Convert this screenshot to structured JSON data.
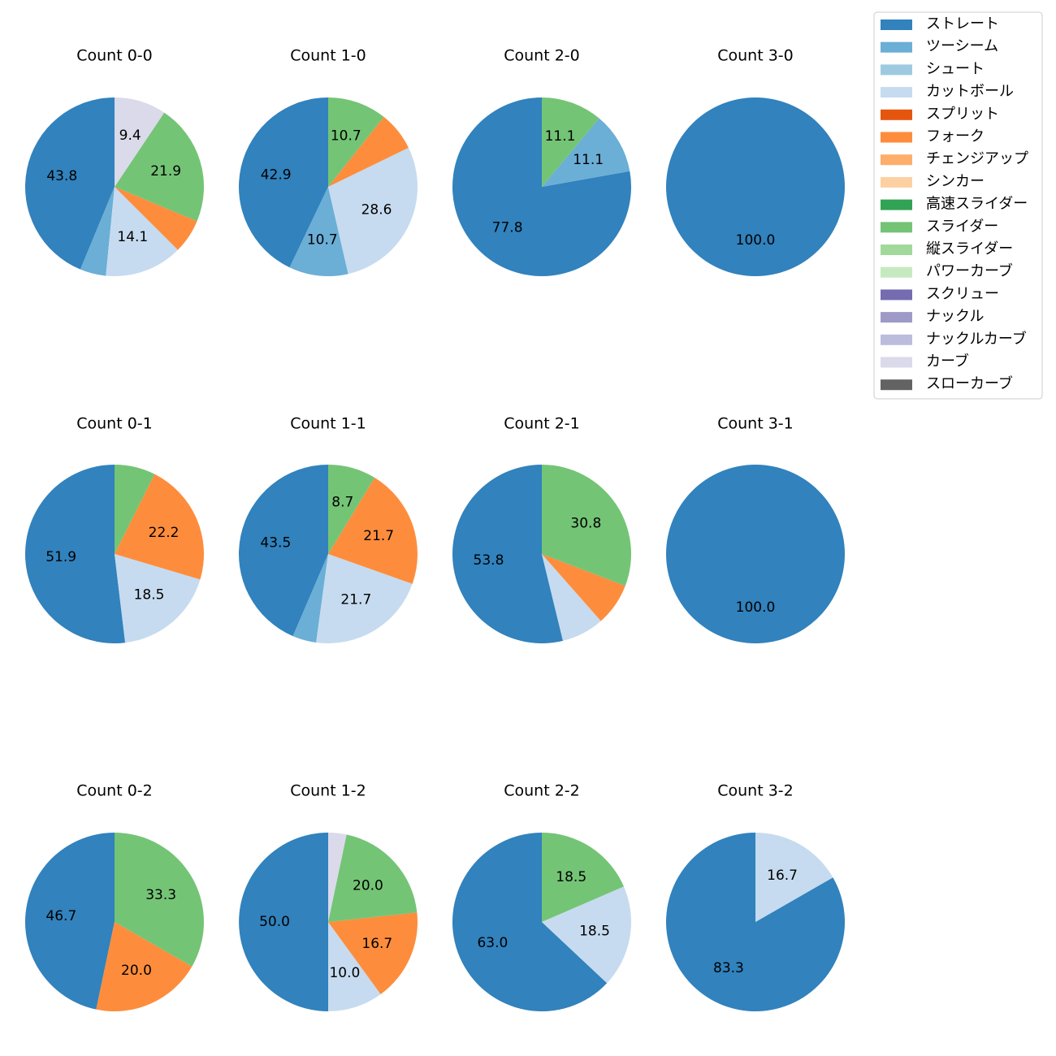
{
  "legend": {
    "entries": [
      {
        "name": "ストレート",
        "color": "#3182bd"
      },
      {
        "name": "ツーシーム",
        "color": "#6baed6"
      },
      {
        "name": "シュート",
        "color": "#9ecae1"
      },
      {
        "name": "カットボール",
        "color": "#c6dbef"
      },
      {
        "name": "スプリット",
        "color": "#e6550d"
      },
      {
        "name": "フォーク",
        "color": "#fd8d3c"
      },
      {
        "name": "チェンジアップ",
        "color": "#fdae6b"
      },
      {
        "name": "シンカー",
        "color": "#fdd0a2"
      },
      {
        "name": "高速スライダー",
        "color": "#31a354"
      },
      {
        "name": "スライダー",
        "color": "#74c476"
      },
      {
        "name": "縦スライダー",
        "color": "#a1d99b"
      },
      {
        "name": "パワーカーブ",
        "color": "#c7e9c0"
      },
      {
        "name": "スクリュー",
        "color": "#756bb1"
      },
      {
        "name": "ナックル",
        "color": "#9e9ac8"
      },
      {
        "name": "ナックルカーブ",
        "color": "#bcbddc"
      },
      {
        "name": "カーブ",
        "color": "#dadaeb"
      },
      {
        "name": "スローカーブ",
        "color": "#636363"
      }
    ]
  },
  "chart_data": [
    {
      "type": "pie",
      "title": "Count 0-0",
      "slices": [
        {
          "name": "ストレート",
          "value": 43.8,
          "label": "43.8"
        },
        {
          "name": "ツーシーム",
          "value": 4.7,
          "label": ""
        },
        {
          "name": "カットボール",
          "value": 14.1,
          "label": "14.1"
        },
        {
          "name": "フォーク",
          "value": 6.2,
          "label": ""
        },
        {
          "name": "スライダー",
          "value": 21.9,
          "label": "21.9"
        },
        {
          "name": "カーブ",
          "value": 9.4,
          "label": "9.4"
        }
      ]
    },
    {
      "type": "pie",
      "title": "Count 1-0",
      "slices": [
        {
          "name": "ストレート",
          "value": 42.9,
          "label": "42.9"
        },
        {
          "name": "ツーシーム",
          "value": 10.7,
          "label": "10.7"
        },
        {
          "name": "カットボール",
          "value": 28.6,
          "label": "28.6"
        },
        {
          "name": "フォーク",
          "value": 7.1,
          "label": ""
        },
        {
          "name": "スライダー",
          "value": 10.7,
          "label": "10.7"
        }
      ]
    },
    {
      "type": "pie",
      "title": "Count 2-0",
      "slices": [
        {
          "name": "ストレート",
          "value": 77.8,
          "label": "77.8"
        },
        {
          "name": "ツーシーム",
          "value": 11.1,
          "label": "11.1"
        },
        {
          "name": "スライダー",
          "value": 11.1,
          "label": "11.1"
        }
      ]
    },
    {
      "type": "pie",
      "title": "Count 3-0",
      "slices": [
        {
          "name": "ストレート",
          "value": 100.0,
          "label": "100.0"
        }
      ]
    },
    {
      "type": "pie",
      "title": "Count 0-1",
      "slices": [
        {
          "name": "ストレート",
          "value": 51.9,
          "label": "51.9"
        },
        {
          "name": "カットボール",
          "value": 18.5,
          "label": "18.5"
        },
        {
          "name": "フォーク",
          "value": 22.2,
          "label": "22.2"
        },
        {
          "name": "スライダー",
          "value": 7.4,
          "label": ""
        }
      ]
    },
    {
      "type": "pie",
      "title": "Count 1-1",
      "slices": [
        {
          "name": "ストレート",
          "value": 43.5,
          "label": "43.5"
        },
        {
          "name": "ツーシーム",
          "value": 4.3,
          "label": ""
        },
        {
          "name": "カットボール",
          "value": 21.7,
          "label": "21.7"
        },
        {
          "name": "フォーク",
          "value": 21.7,
          "label": "21.7"
        },
        {
          "name": "スライダー",
          "value": 8.7,
          "label": "8.7"
        }
      ]
    },
    {
      "type": "pie",
      "title": "Count 2-1",
      "slices": [
        {
          "name": "ストレート",
          "value": 53.8,
          "label": "53.8"
        },
        {
          "name": "カットボール",
          "value": 7.7,
          "label": ""
        },
        {
          "name": "フォーク",
          "value": 7.7,
          "label": ""
        },
        {
          "name": "スライダー",
          "value": 30.8,
          "label": "30.8"
        }
      ]
    },
    {
      "type": "pie",
      "title": "Count 3-1",
      "slices": [
        {
          "name": "ストレート",
          "value": 100.0,
          "label": "100.0"
        }
      ]
    },
    {
      "type": "pie",
      "title": "Count 0-2",
      "slices": [
        {
          "name": "ストレート",
          "value": 46.7,
          "label": "46.7"
        },
        {
          "name": "フォーク",
          "value": 20.0,
          "label": "20.0"
        },
        {
          "name": "スライダー",
          "value": 33.3,
          "label": "33.3"
        }
      ]
    },
    {
      "type": "pie",
      "title": "Count 1-2",
      "slices": [
        {
          "name": "ストレート",
          "value": 50.0,
          "label": "50.0"
        },
        {
          "name": "カットボール",
          "value": 10.0,
          "label": "10.0"
        },
        {
          "name": "フォーク",
          "value": 16.7,
          "label": "16.7"
        },
        {
          "name": "スライダー",
          "value": 20.0,
          "label": "20.0"
        },
        {
          "name": "カーブ",
          "value": 3.3,
          "label": ""
        }
      ]
    },
    {
      "type": "pie",
      "title": "Count 2-2",
      "slices": [
        {
          "name": "ストレート",
          "value": 63.0,
          "label": "63.0"
        },
        {
          "name": "カットボール",
          "value": 18.5,
          "label": "18.5"
        },
        {
          "name": "スライダー",
          "value": 18.5,
          "label": "18.5"
        }
      ]
    },
    {
      "type": "pie",
      "title": "Count 3-2",
      "slices": [
        {
          "name": "ストレート",
          "value": 83.3,
          "label": "83.3"
        },
        {
          "name": "カットボール",
          "value": 16.7,
          "label": "16.7"
        }
      ]
    }
  ]
}
